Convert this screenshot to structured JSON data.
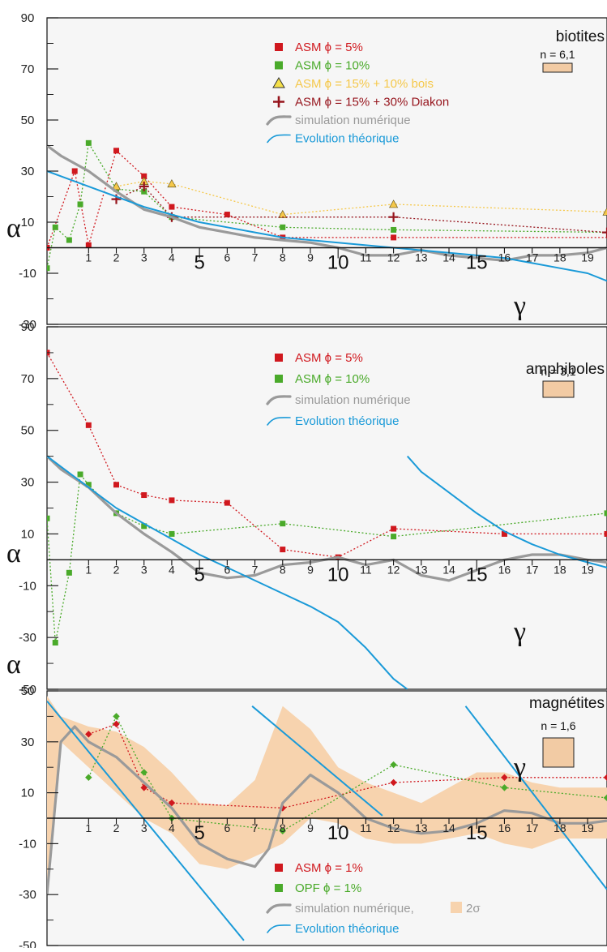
{
  "colors": {
    "asm5": "#d0181e",
    "asm10": "#4aaa2a",
    "asm15bois": "#f5c84a",
    "asm15diakon": "#96141c",
    "simulation": "#9a9a9a",
    "theory": "#1a9ad8",
    "band": "#f7d3ae",
    "nbox": "#f2cba4",
    "panel_bg": "#f6f6f6"
  },
  "axis_symbols": {
    "y": "α",
    "x": "γ"
  },
  "chart_data": [
    {
      "type": "line",
      "mineral_label": "biotites",
      "n_label": "n = 6,1",
      "n_value": 6.1,
      "ylim": [
        -30,
        90
      ],
      "xlim": [
        -0.5,
        19.7
      ],
      "yticks": [
        90,
        70,
        50,
        30,
        10,
        -10,
        -30
      ],
      "xticks_small": [
        "1",
        "2",
        "3",
        "4",
        "6",
        "7",
        "8",
        "9",
        "11",
        "12",
        "13",
        "14",
        "16",
        "17",
        "18",
        "19"
      ],
      "xticks_large": [
        "5",
        "10",
        "15"
      ],
      "legend": [
        {
          "key": "asm5",
          "label": "ASM ϕ = 5%",
          "marker": "square",
          "color": "#d0181e"
        },
        {
          "key": "asm10",
          "label": "ASM ϕ = 10%",
          "marker": "square",
          "color": "#4aaa2a"
        },
        {
          "key": "asm15bois",
          "label": "ASM ϕ = 15% + 10% bois",
          "marker": "triangle",
          "color": "#f5c84a"
        },
        {
          "key": "asm15diakon",
          "label": "ASM ϕ = 15% + 30% Diakon",
          "marker": "cross",
          "color": "#96141c"
        },
        {
          "key": "simulation",
          "label": "simulation numérique",
          "marker": "wave",
          "color": "#9a9a9a"
        },
        {
          "key": "theory",
          "label": "Evolution théorique",
          "marker": "wave",
          "color": "#1a9ad8"
        }
      ],
      "series": [
        {
          "key": "asm5",
          "marker": "square",
          "color": "#d0181e",
          "dotted": true,
          "x": [
            -0.5,
            0.5,
            1,
            2,
            3,
            4,
            6,
            8,
            12,
            20
          ],
          "y": [
            0,
            30,
            1,
            38,
            28,
            16,
            13,
            4,
            4,
            4
          ]
        },
        {
          "key": "asm10",
          "marker": "square",
          "color": "#4aaa2a",
          "dotted": true,
          "x": [
            -0.5,
            -0.2,
            0.3,
            0.7,
            1,
            2,
            3,
            4,
            8,
            12,
            20
          ],
          "y": [
            -8,
            8,
            3,
            17,
            41,
            23,
            22,
            12,
            8,
            7,
            6
          ]
        },
        {
          "key": "asm15bois",
          "marker": "triangle",
          "color": "#f5c84a",
          "dotted": true,
          "x": [
            2,
            3,
            4,
            8,
            12,
            19.7
          ],
          "y": [
            24,
            26,
            25,
            13,
            17,
            14
          ]
        },
        {
          "key": "asm15diakon",
          "marker": "cross",
          "color": "#96141c",
          "dotted": true,
          "x": [
            2,
            3,
            4,
            12,
            19.7
          ],
          "y": [
            19,
            24,
            12,
            12,
            6
          ]
        },
        {
          "key": "simulation",
          "color": "#9a9a9a",
          "dotted": false,
          "x": [
            -0.5,
            0,
            1,
            2,
            3,
            4,
            5,
            6,
            7,
            8,
            9,
            10,
            11,
            12,
            13,
            14,
            15,
            16,
            17,
            18,
            19,
            19.7
          ],
          "y": [
            40,
            36,
            30,
            22,
            15,
            12,
            8,
            6,
            4,
            3,
            2,
            0,
            -3,
            -3,
            -1,
            -3,
            -4,
            -5,
            -3,
            -3,
            -2,
            0
          ]
        },
        {
          "key": "theory",
          "color": "#1a9ad8",
          "dotted": false,
          "x": [
            -0.5,
            0,
            1,
            2,
            3,
            4,
            5,
            6,
            7,
            8,
            9,
            10,
            11,
            12,
            13,
            14,
            15,
            16,
            17,
            18,
            19,
            19.7
          ],
          "y": [
            30,
            28,
            24,
            20,
            16,
            13,
            10,
            8,
            6,
            4,
            3,
            2,
            1,
            0,
            -1,
            -2,
            -3,
            -4,
            -6,
            -8,
            -10,
            -13
          ]
        }
      ]
    },
    {
      "type": "line",
      "mineral_label": "amphiboles",
      "n_label": "n = 3,1",
      "n_value": 3.1,
      "ylim": [
        -50,
        90
      ],
      "xlim": [
        -0.5,
        19.7
      ],
      "yticks": [
        90,
        70,
        50,
        30,
        10,
        -10,
        -30,
        -50
      ],
      "xticks_small": [
        "1",
        "2",
        "3",
        "4",
        "6",
        "7",
        "8",
        "9",
        "11",
        "12",
        "13",
        "14",
        "16",
        "17",
        "18",
        "19"
      ],
      "xticks_large": [
        "5",
        "10",
        "15"
      ],
      "legend": [
        {
          "key": "asm5",
          "label": "ASM ϕ = 5%",
          "marker": "square",
          "color": "#d0181e"
        },
        {
          "key": "asm10",
          "label": "ASM ϕ = 10%",
          "marker": "square",
          "color": "#4aaa2a"
        },
        {
          "key": "simulation",
          "label": "simulation numérique",
          "marker": "wave",
          "color": "#9a9a9a"
        },
        {
          "key": "theory",
          "label": "Evolution théorique",
          "marker": "wave",
          "color": "#1a9ad8"
        }
      ],
      "series": [
        {
          "key": "asm5",
          "marker": "square",
          "color": "#d0181e",
          "dotted": true,
          "x": [
            -0.5,
            1,
            2,
            3,
            4,
            6,
            8,
            10,
            12,
            16,
            19.7
          ],
          "y": [
            80,
            52,
            29,
            25,
            23,
            22,
            4,
            1,
            12,
            10,
            10
          ]
        },
        {
          "key": "asm10",
          "marker": "square",
          "color": "#4aaa2a",
          "dotted": true,
          "x": [
            -0.5,
            -0.2,
            0.3,
            0.7,
            1,
            2,
            3,
            4,
            8,
            12,
            19.7
          ],
          "y": [
            16,
            -32,
            -5,
            33,
            29,
            18,
            13,
            10,
            14,
            9,
            18
          ]
        },
        {
          "key": "simulation",
          "color": "#9a9a9a",
          "dotted": false,
          "x": [
            -0.5,
            0,
            1,
            2,
            3,
            4,
            5,
            6,
            7,
            8,
            9,
            10,
            11,
            12,
            13,
            14,
            15,
            16,
            17,
            18,
            19,
            19.7
          ],
          "y": [
            40,
            35,
            28,
            18,
            10,
            3,
            -5,
            -7,
            -6,
            -2,
            -1,
            1,
            -2,
            0,
            -6,
            -8,
            -4,
            0,
            2,
            2,
            0,
            -1
          ]
        },
        {
          "key": "theory",
          "color": "#1a9ad8",
          "dotted": false,
          "x": [
            -0.5,
            0,
            1,
            2,
            3,
            4,
            5,
            6,
            7,
            8,
            9,
            10,
            11,
            12,
            12.5
          ],
          "y": [
            40,
            36,
            28,
            20,
            14,
            8,
            2,
            -3,
            -8,
            -13,
            -18,
            -24,
            -34,
            -46,
            -50
          ]
        },
        {
          "key": "theory",
          "color": "#1a9ad8",
          "dotted": false,
          "x": [
            12.5,
            13,
            14,
            15,
            16,
            17,
            18,
            19,
            19.7
          ],
          "y": [
            40,
            34,
            26,
            18,
            11,
            6,
            2,
            -1,
            -3
          ]
        }
      ]
    },
    {
      "type": "line",
      "mineral_label": "magnétites",
      "n_label": "n = 1,6",
      "n_value": 1.6,
      "ylim": [
        -50,
        50
      ],
      "xlim": [
        -0.5,
        19.7
      ],
      "yticks": [
        50,
        30,
        10,
        -10,
        -30,
        -50
      ],
      "xticks_small": [
        "1",
        "2",
        "3",
        "4",
        "6",
        "7",
        "8",
        "9",
        "11",
        "12",
        "13",
        "14",
        "16",
        "17",
        "18",
        "19"
      ],
      "xticks_large": [
        "5",
        "10",
        "15"
      ],
      "band_label": "2σ",
      "legend": [
        {
          "key": "asm1",
          "label": "ASM ϕ = 1%",
          "marker": "square",
          "color": "#d0181e"
        },
        {
          "key": "opf1",
          "label": "OPF ϕ = 1%",
          "marker": "square",
          "color": "#4aaa2a"
        },
        {
          "key": "simulation",
          "label": "simulation numérique,",
          "marker": "wave",
          "color": "#9a9a9a"
        },
        {
          "key": "theory",
          "label": "Evolution théorique",
          "marker": "wave",
          "color": "#1a9ad8"
        }
      ],
      "band": {
        "x": [
          -0.5,
          0,
          1,
          2,
          3,
          4,
          5,
          6,
          7,
          8,
          9,
          10,
          11,
          12,
          13,
          14,
          15,
          16,
          17,
          18,
          19,
          19.7
        ],
        "upper": [
          48,
          40,
          36,
          34,
          28,
          18,
          6,
          5,
          15,
          44,
          35,
          20,
          14,
          10,
          6,
          12,
          18,
          18,
          14,
          12,
          12,
          12
        ],
        "lower": [
          -30,
          30,
          20,
          10,
          0,
          -6,
          -18,
          -20,
          -15,
          -10,
          0,
          -2,
          -8,
          -10,
          -10,
          -8,
          -6,
          -10,
          -12,
          -8,
          -8,
          -8
        ]
      },
      "series": [
        {
          "key": "asm1",
          "marker": "diamond",
          "color": "#d0181e",
          "dotted": true,
          "x": [
            1,
            2,
            3,
            4,
            8,
            12,
            16,
            19.7
          ],
          "y": [
            33,
            37,
            12,
            6,
            4,
            14,
            16,
            16
          ]
        },
        {
          "key": "opf1",
          "marker": "diamond",
          "color": "#4aaa2a",
          "dotted": true,
          "x": [
            1,
            2,
            3,
            4,
            8,
            12,
            16,
            19.7
          ],
          "y": [
            16,
            40,
            18,
            0,
            -5,
            21,
            12,
            8
          ]
        },
        {
          "key": "simulation",
          "color": "#9a9a9a",
          "dotted": false,
          "x": [
            -0.5,
            0,
            0.5,
            1,
            2,
            3,
            4,
            5,
            6,
            7,
            7.5,
            8,
            9,
            10,
            11,
            12,
            13,
            14,
            15,
            16,
            17,
            18,
            19,
            19.7
          ],
          "y": [
            -30,
            30,
            36,
            30,
            24,
            14,
            4,
            -10,
            -16,
            -19,
            -12,
            6,
            17,
            10,
            0,
            -4,
            -6,
            -5,
            -2,
            3,
            2,
            -2,
            -2,
            -1
          ]
        },
        {
          "key": "theory",
          "color": "#1a9ad8",
          "dotted": false,
          "x": [
            -0.5,
            6.6
          ],
          "y": [
            46,
            -48
          ]
        },
        {
          "key": "theory",
          "color": "#1a9ad8",
          "dotted": false,
          "x": [
            6.9,
            11.6
          ],
          "y": [
            44,
            1
          ]
        },
        {
          "key": "theory",
          "color": "#1a9ad8",
          "dotted": false,
          "x": [
            14.6,
            19.7
          ],
          "y": [
            44,
            -28
          ]
        }
      ]
    }
  ]
}
